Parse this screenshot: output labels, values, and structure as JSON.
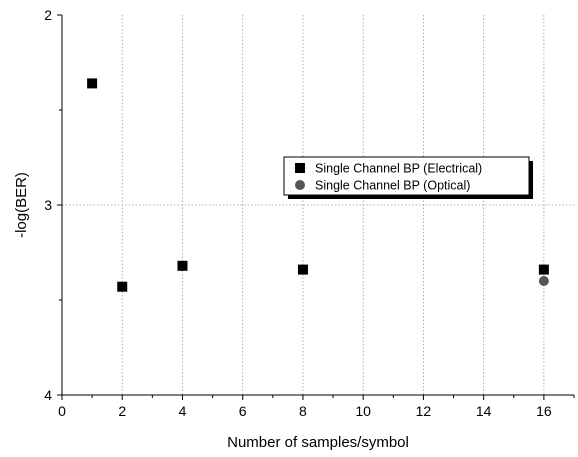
{
  "chart_data": {
    "type": "scatter",
    "xlabel": "Number of samples/symbol",
    "ylabel": "-log(BER)",
    "xlim": [
      0,
      17
    ],
    "ylim": [
      2,
      4
    ],
    "y_inverted": true,
    "x_ticks": [
      0,
      2,
      4,
      6,
      8,
      10,
      12,
      14,
      16
    ],
    "y_ticks": [
      2,
      3,
      4
    ],
    "grid": true,
    "legend_position": "center-right",
    "series": [
      {
        "name": "Single Channel BP (Electrical)",
        "marker": "square",
        "color": "#000000",
        "x": [
          1,
          2,
          4,
          8,
          16
        ],
        "y": [
          2.36,
          3.43,
          3.32,
          3.34,
          3.34
        ]
      },
      {
        "name": "Single Channel BP (Optical)",
        "marker": "circle",
        "color": "#555555",
        "x": [
          16
        ],
        "y": [
          3.4
        ]
      }
    ]
  }
}
